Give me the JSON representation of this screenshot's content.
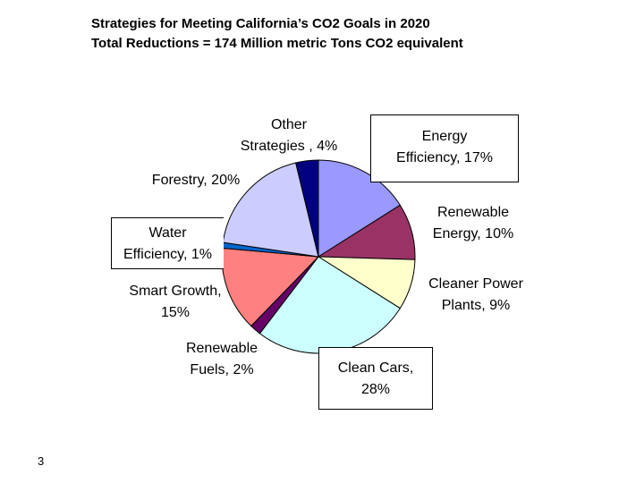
{
  "chart_data": {
    "type": "pie",
    "title": "Strategies for Meeting California’s CO2 Goals in 2020",
    "subtitle": "Total Reductions = 174 Million metric Tons CO2 equivalent",
    "slices": [
      {
        "label": "Energy Efficiency, 17%",
        "lines": [
          "Energy",
          "Efficiency, 17%"
        ],
        "value": 17,
        "color": "#9999FF"
      },
      {
        "label": "Renewable Energy, 10%",
        "lines": [
          "Renewable",
          "Energy, 10%"
        ],
        "value": 10,
        "color": "#993366"
      },
      {
        "label": "Cleaner Power Plants, 9%",
        "lines": [
          "Cleaner Power",
          "Plants, 9%"
        ],
        "value": 9,
        "color": "#FFFFCC"
      },
      {
        "label": "Clean Cars, 28%",
        "lines": [
          "Clean Cars,",
          "28%"
        ],
        "value": 28,
        "color": "#CCFFFF"
      },
      {
        "label": "Renewable Fuels, 2%",
        "lines": [
          "Renewable",
          "Fuels, 2%"
        ],
        "value": 2,
        "color": "#660066"
      },
      {
        "label": "Smart Growth, 15%",
        "lines": [
          "Smart Growth,",
          "15%"
        ],
        "value": 15,
        "color": "#FF8080"
      },
      {
        "label": "Water Efficiency, 1%",
        "lines": [
          "Water",
          "Efficiency, 1%"
        ],
        "value": 1,
        "color": "#0066CC"
      },
      {
        "label": "Forestry, 20%",
        "lines": [
          "Forestry, 20%"
        ],
        "value": 20,
        "color": "#CCCCFF"
      },
      {
        "label": "Other Strategies , 4%",
        "lines": [
          "Other",
          "Strategies , 4%"
        ],
        "value": 4,
        "color": "#000080"
      }
    ],
    "legend": "none"
  },
  "page_number": "3"
}
